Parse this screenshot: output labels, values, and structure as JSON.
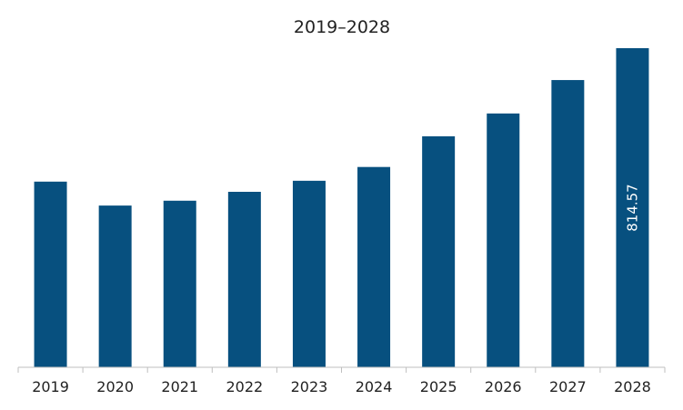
{
  "chart_data": {
    "type": "bar",
    "title": "2019–2028",
    "xlabel": "",
    "ylabel": "",
    "categories": [
      "2019",
      "2020",
      "2021",
      "2022",
      "2023",
      "2024",
      "2025",
      "2026",
      "2027",
      "2028"
    ],
    "values": [
      473.9,
      412.8,
      425.2,
      447.9,
      476.1,
      511.3,
      589.7,
      647.9,
      733.2,
      814.57
    ],
    "data_labels": [
      "",
      "",
      "",
      "",
      "",
      "",
      "",
      "",
      "",
      "814.57"
    ],
    "ylim": [
      0,
      814.57
    ],
    "y_axis_visible": false,
    "grid": false,
    "legend": "none",
    "colors": {
      "bar": "#07507f",
      "axis": "#bfbfbf",
      "text": "#222222",
      "data_label": "#ffffff"
    }
  }
}
